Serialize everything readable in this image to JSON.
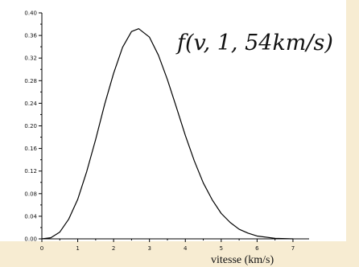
{
  "chart_data": {
    "type": "line",
    "title": "",
    "xlabel": "vitesse (km/s)",
    "ylabel": "",
    "annotation": "f(v, 1, 54km/s)",
    "xlim": [
      0,
      7.45
    ],
    "ylim": [
      0,
      0.4
    ],
    "xticks": [
      0,
      1,
      2,
      3,
      4,
      5,
      6,
      7
    ],
    "yticks": [
      "0.00",
      "0.04",
      "0.08",
      "0.12",
      "0.16",
      "0.20",
      "0.24",
      "0.28",
      "0.32",
      "0.36",
      "0.40"
    ],
    "grid": false,
    "series": [
      {
        "color": "#000000",
        "x": [
          0,
          0.25,
          0.5,
          0.75,
          1.0,
          1.25,
          1.5,
          1.75,
          2.0,
          2.25,
          2.5,
          2.7,
          3.0,
          3.25,
          3.5,
          3.75,
          4.0,
          4.25,
          4.5,
          4.75,
          5.0,
          5.25,
          5.5,
          5.75,
          6.0,
          6.5,
          7.0
        ],
        "y": [
          0.0,
          0.002,
          0.012,
          0.035,
          0.07,
          0.119,
          0.176,
          0.238,
          0.293,
          0.339,
          0.367,
          0.372,
          0.357,
          0.325,
          0.282,
          0.233,
          0.183,
          0.138,
          0.099,
          0.069,
          0.045,
          0.029,
          0.017,
          0.01,
          0.005,
          0.001,
          0.0
        ]
      }
    ]
  }
}
